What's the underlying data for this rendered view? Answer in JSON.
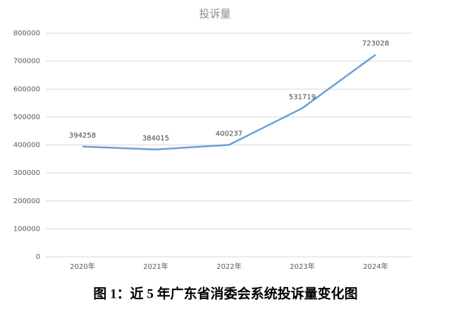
{
  "chart_data": {
    "type": "line",
    "title": "投诉量",
    "categories": [
      "2020年",
      "2021年",
      "2022年",
      "2023年",
      "2024年"
    ],
    "values": [
      394258,
      384015,
      400237,
      531719,
      723028
    ],
    "color": "#6a9fd3",
    "ylim": [
      0,
      800000
    ],
    "yticks": [
      0,
      100000,
      200000,
      300000,
      400000,
      500000,
      600000,
      700000,
      800000
    ],
    "grid": true,
    "caption": "图 1：近 5 年广东省消委会系统投诉量变化图"
  }
}
